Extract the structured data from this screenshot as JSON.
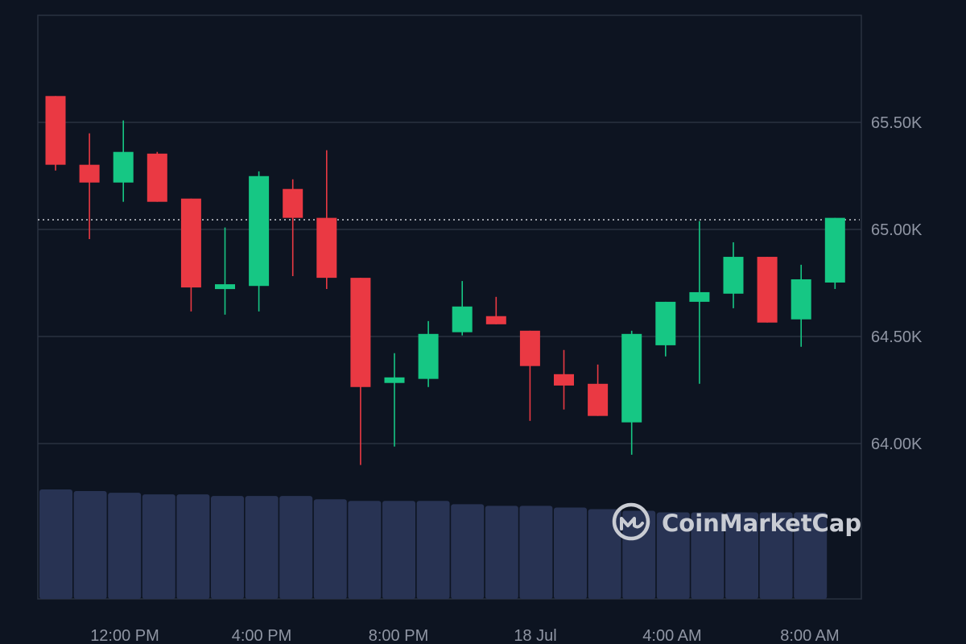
{
  "colors": {
    "background": "#0d1421",
    "up": "#16c784",
    "down": "#ea3943",
    "grid": "#2a3140",
    "volume": "#283353",
    "text": "#8f95a3",
    "watermark": "#c9ccd3"
  },
  "watermark": {
    "text": "CoinMarketCap",
    "icon": "coinmarketcap-logo-icon"
  },
  "chart_data": {
    "type": "candlestick",
    "y_ticks": [
      {
        "value": 65500,
        "label": "65.50K"
      },
      {
        "value": 65000,
        "label": "65.00K"
      },
      {
        "value": 64500,
        "label": "64.50K"
      },
      {
        "value": 64000,
        "label": "64.00K"
      }
    ],
    "x_ticks": [
      "12:00 PM",
      "4:00 PM",
      "8:00 PM",
      "18 Jul",
      "4:00 AM",
      "8:00 AM"
    ],
    "ylim": [
      63750,
      66000
    ],
    "current_price_line": 65045,
    "grid": true,
    "volume_shown": true,
    "candles": [
      {
        "open": 65623,
        "high": 65623,
        "low": 65275,
        "close": 65302
      },
      {
        "open": 65302,
        "high": 65449,
        "low": 64955,
        "close": 65219
      },
      {
        "open": 65219,
        "high": 65509,
        "low": 65129,
        "close": 65362
      },
      {
        "open": 65354,
        "high": 65362,
        "low": 65129,
        "close": 65129
      },
      {
        "open": 65144,
        "high": 65144,
        "low": 64617,
        "close": 64729
      },
      {
        "open": 64729,
        "high": 65009,
        "low": 64602,
        "close": 64744
      },
      {
        "open": 64736,
        "high": 65271,
        "low": 64617,
        "close": 65249
      },
      {
        "open": 65189,
        "high": 65234,
        "low": 64782,
        "close": 65054
      },
      {
        "open": 65054,
        "high": 65370,
        "low": 64722,
        "close": 64774
      },
      {
        "open": 64774,
        "high": 64774,
        "low": 63900,
        "close": 64264
      },
      {
        "open": 64283,
        "high": 64422,
        "low": 63986,
        "close": 64309
      },
      {
        "open": 64302,
        "high": 64572,
        "low": 64264,
        "close": 64512
      },
      {
        "open": 64520,
        "high": 64759,
        "low": 64505,
        "close": 64640
      },
      {
        "open": 64595,
        "high": 64685,
        "low": 64557,
        "close": 64557
      },
      {
        "open": 64527,
        "high": 64527,
        "low": 64106,
        "close": 64362
      },
      {
        "open": 64324,
        "high": 64437,
        "low": 64159,
        "close": 64271
      },
      {
        "open": 64279,
        "high": 64369,
        "low": 64129,
        "close": 64129
      },
      {
        "open": 64099,
        "high": 64527,
        "low": 63948,
        "close": 64512
      },
      {
        "open": 64459,
        "high": 64662,
        "low": 64407,
        "close": 64662
      },
      {
        "open": 64662,
        "high": 65039,
        "low": 64279,
        "close": 64707
      },
      {
        "open": 64700,
        "high": 64940,
        "low": 64632,
        "close": 64872
      },
      {
        "open": 64872,
        "high": 64872,
        "low": 64565,
        "close": 64565
      },
      {
        "open": 64580,
        "high": 64835,
        "low": 64452,
        "close": 64767
      },
      {
        "open": 64752,
        "high": 65054,
        "low": 64722,
        "close": 65054
      }
    ],
    "volumes": [
      1,
      0.985,
      0.97,
      0.955,
      0.955,
      0.94,
      0.94,
      0.94,
      0.91,
      0.895,
      0.895,
      0.895,
      0.865,
      0.85,
      0.85,
      0.835,
      0.82,
      0.805,
      0.79,
      0.79,
      0.79,
      0.79,
      0.79
    ]
  }
}
